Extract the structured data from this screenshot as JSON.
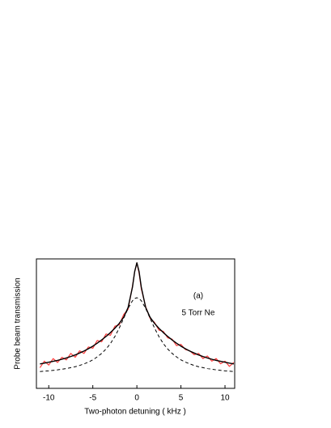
{
  "chart_data": {
    "type": "line",
    "xlabel": "Two-photon detuning ( kHz )",
    "ylabel": "Probe beam transmission",
    "annotations": [
      "(a)",
      "5 Torr Ne"
    ],
    "x": [
      -11,
      -10.5,
      -10,
      -9.5,
      -9,
      -8.5,
      -8,
      -7.5,
      -7,
      -6.5,
      -6,
      -5.5,
      -5,
      -4.5,
      -4,
      -3.5,
      -3,
      -2.5,
      -2,
      -1.5,
      -1,
      -0.5,
      -0.25,
      0,
      0.25,
      0.5,
      1,
      1.5,
      2,
      2.5,
      3,
      3.5,
      4,
      4.5,
      5,
      5.5,
      6,
      6.5,
      7,
      7.5,
      8,
      8.5,
      9,
      9.5,
      10,
      10.5,
      11
    ],
    "series": [
      {
        "color": "#ff3b3b",
        "dashed": false,
        "width": 1.2,
        "values": [
          0.16,
          0.21,
          0.18,
          0.23,
          0.2,
          0.24,
          0.22,
          0.27,
          0.24,
          0.29,
          0.27,
          0.32,
          0.31,
          0.37,
          0.36,
          0.42,
          0.41,
          0.48,
          0.49,
          0.57,
          0.61,
          0.79,
          0.9,
          0.97,
          0.89,
          0.77,
          0.63,
          0.54,
          0.51,
          0.45,
          0.44,
          0.39,
          0.38,
          0.33,
          0.34,
          0.3,
          0.29,
          0.26,
          0.27,
          0.23,
          0.25,
          0.21,
          0.23,
          0.19,
          0.21,
          0.17,
          0.2
        ]
      },
      {
        "color": "#000000",
        "dashed": false,
        "width": 1.4,
        "values": [
          0.189,
          0.195,
          0.202,
          0.209,
          0.216,
          0.225,
          0.235,
          0.246,
          0.258,
          0.273,
          0.288,
          0.306,
          0.326,
          0.349,
          0.374,
          0.401,
          0.431,
          0.464,
          0.502,
          0.549,
          0.624,
          0.782,
          0.902,
          0.97,
          0.902,
          0.782,
          0.624,
          0.549,
          0.502,
          0.464,
          0.431,
          0.401,
          0.374,
          0.349,
          0.326,
          0.306,
          0.288,
          0.273,
          0.258,
          0.246,
          0.235,
          0.225,
          0.216,
          0.209,
          0.202,
          0.195,
          0.189
        ]
      },
      {
        "color": "#000000",
        "dashed": true,
        "width": 1,
        "values": [
          0.13,
          0.133,
          0.135,
          0.139,
          0.143,
          0.148,
          0.153,
          0.16,
          0.167,
          0.177,
          0.189,
          0.203,
          0.22,
          0.243,
          0.27,
          0.304,
          0.346,
          0.4,
          0.466,
          0.541,
          0.617,
          0.677,
          0.694,
          0.7,
          0.694,
          0.677,
          0.617,
          0.541,
          0.466,
          0.4,
          0.346,
          0.304,
          0.27,
          0.243,
          0.22,
          0.203,
          0.189,
          0.177,
          0.167,
          0.16,
          0.153,
          0.148,
          0.143,
          0.139,
          0.135,
          0.133,
          0.13
        ]
      }
    ],
    "xlim": [
      -11.4,
      11.1
    ],
    "xticks": [
      -10,
      -5,
      0,
      5,
      10
    ],
    "ylim": [
      0,
      1.0
    ]
  }
}
